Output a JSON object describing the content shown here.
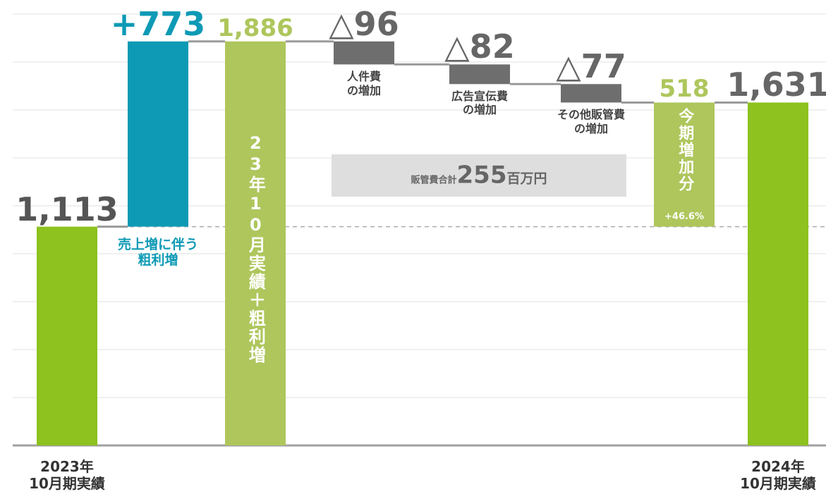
{
  "chart_data": {
    "type": "waterfall",
    "categories": [
      "2023年\n10月期実績",
      "売上増に伴う\n粗利増",
      "23年10月実績＋粗利増",
      "人件費\nの増加",
      "広告宣伝費\nの増加",
      "その他販管費\nの増加",
      "今期増加分",
      "2024年\n10月期実績"
    ],
    "values": [
      1113,
      773,
      1886,
      -96,
      -82,
      -77,
      518,
      1631
    ],
    "value_labels": [
      "1,113",
      "+773",
      "1,886",
      "△96",
      "△82",
      "△77",
      "518",
      "1,631"
    ],
    "measures": [
      "total",
      "relative",
      "total",
      "relative",
      "relative",
      "relative",
      "difference",
      "total"
    ],
    "colors": [
      "#8dc21f",
      "#0e9ab5",
      "#aec65c",
      "#6e6e6e",
      "#6e6e6e",
      "#6e6e6e",
      "#aec65c",
      "#8dc21f"
    ],
    "label_colors": [
      "#555555",
      "#0e9ab5",
      "#aec65c",
      "#666666",
      "#666666",
      "#666666",
      "#aec65c",
      "#666666"
    ],
    "increase_note": "+46.6%",
    "annotation": {
      "prefix": "販管費合計",
      "value": 255,
      "suffix": "百万円"
    },
    "ylim": [
      200,
      2000
    ],
    "yticks": [
      200,
      400,
      600,
      800,
      1000,
      1200,
      1400,
      1600,
      1800,
      2000
    ],
    "grid": true,
    "reference_line": 1113
  }
}
